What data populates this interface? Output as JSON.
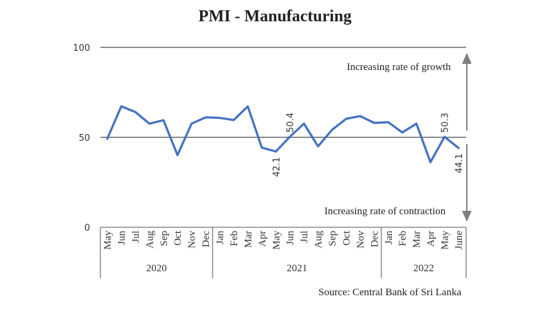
{
  "chart_data": {
    "type": "line",
    "title": "PMI - Manufacturing",
    "xlabel": "",
    "ylabel": "",
    "ylim": [
      0,
      100
    ],
    "yticks": [
      0,
      50,
      100
    ],
    "grid": "horizontal lines at 50 and 100",
    "categories": [
      {
        "month": "May",
        "year": "2020"
      },
      {
        "month": "Jun",
        "year": "2020"
      },
      {
        "month": "Jul",
        "year": "2020"
      },
      {
        "month": "Aug",
        "year": "2020"
      },
      {
        "month": "Sep",
        "year": "2020"
      },
      {
        "month": "Oct",
        "year": "2020"
      },
      {
        "month": "Nov",
        "year": "2020"
      },
      {
        "month": "Dec",
        "year": "2020"
      },
      {
        "month": "Jan",
        "year": "2021"
      },
      {
        "month": "Feb",
        "year": "2021"
      },
      {
        "month": "Mar",
        "year": "2021"
      },
      {
        "month": "Apr",
        "year": "2021"
      },
      {
        "month": "May",
        "year": "2021"
      },
      {
        "month": "Jun",
        "year": "2021"
      },
      {
        "month": "Jul",
        "year": "2021"
      },
      {
        "month": "Aug",
        "year": "2021"
      },
      {
        "month": "Sep",
        "year": "2021"
      },
      {
        "month": "Oct",
        "year": "2021"
      },
      {
        "month": "Nov",
        "year": "2021"
      },
      {
        "month": "Dec",
        "year": "2021"
      },
      {
        "month": "Jan",
        "year": "2022"
      },
      {
        "month": "Feb",
        "year": "2022"
      },
      {
        "month": "Mar",
        "year": "2022"
      },
      {
        "month": "Apr",
        "year": "2022"
      },
      {
        "month": "May",
        "year": "2022"
      },
      {
        "month": "June",
        "year": "2022"
      }
    ],
    "year_groups": [
      "2020",
      "2021",
      "2022"
    ],
    "series": [
      {
        "name": "PMI - Manufacturing",
        "color": "#4472c4",
        "values": [
          49.2,
          67.2,
          64.1,
          57.6,
          59.5,
          40.1,
          57.6,
          61.1,
          60.8,
          59.6,
          67.2,
          44.3,
          42.1,
          50.4,
          57.6,
          45.0,
          54.2,
          60.3,
          61.8,
          58.0,
          58.4,
          52.7,
          57.6,
          36.2,
          50.3,
          44.1
        ]
      }
    ],
    "data_labels": [
      {
        "index": 12,
        "text": "42.1",
        "position": "below"
      },
      {
        "index": 13,
        "text": "50.4",
        "position": "above"
      },
      {
        "index": 24,
        "text": "50.3",
        "position": "above"
      },
      {
        "index": 25,
        "text": "44.1",
        "position": "below"
      }
    ],
    "annotations": {
      "growth": "Increasing rate of growth",
      "contraction": "Increasing rate of contraction"
    },
    "source": "Source: Central Bank of Sri Lanka"
  },
  "colors": {
    "line": "#4472c4",
    "grid": "#8c8c8c",
    "arrow": "#7f7f7f",
    "axis": "#8c8c8c"
  }
}
